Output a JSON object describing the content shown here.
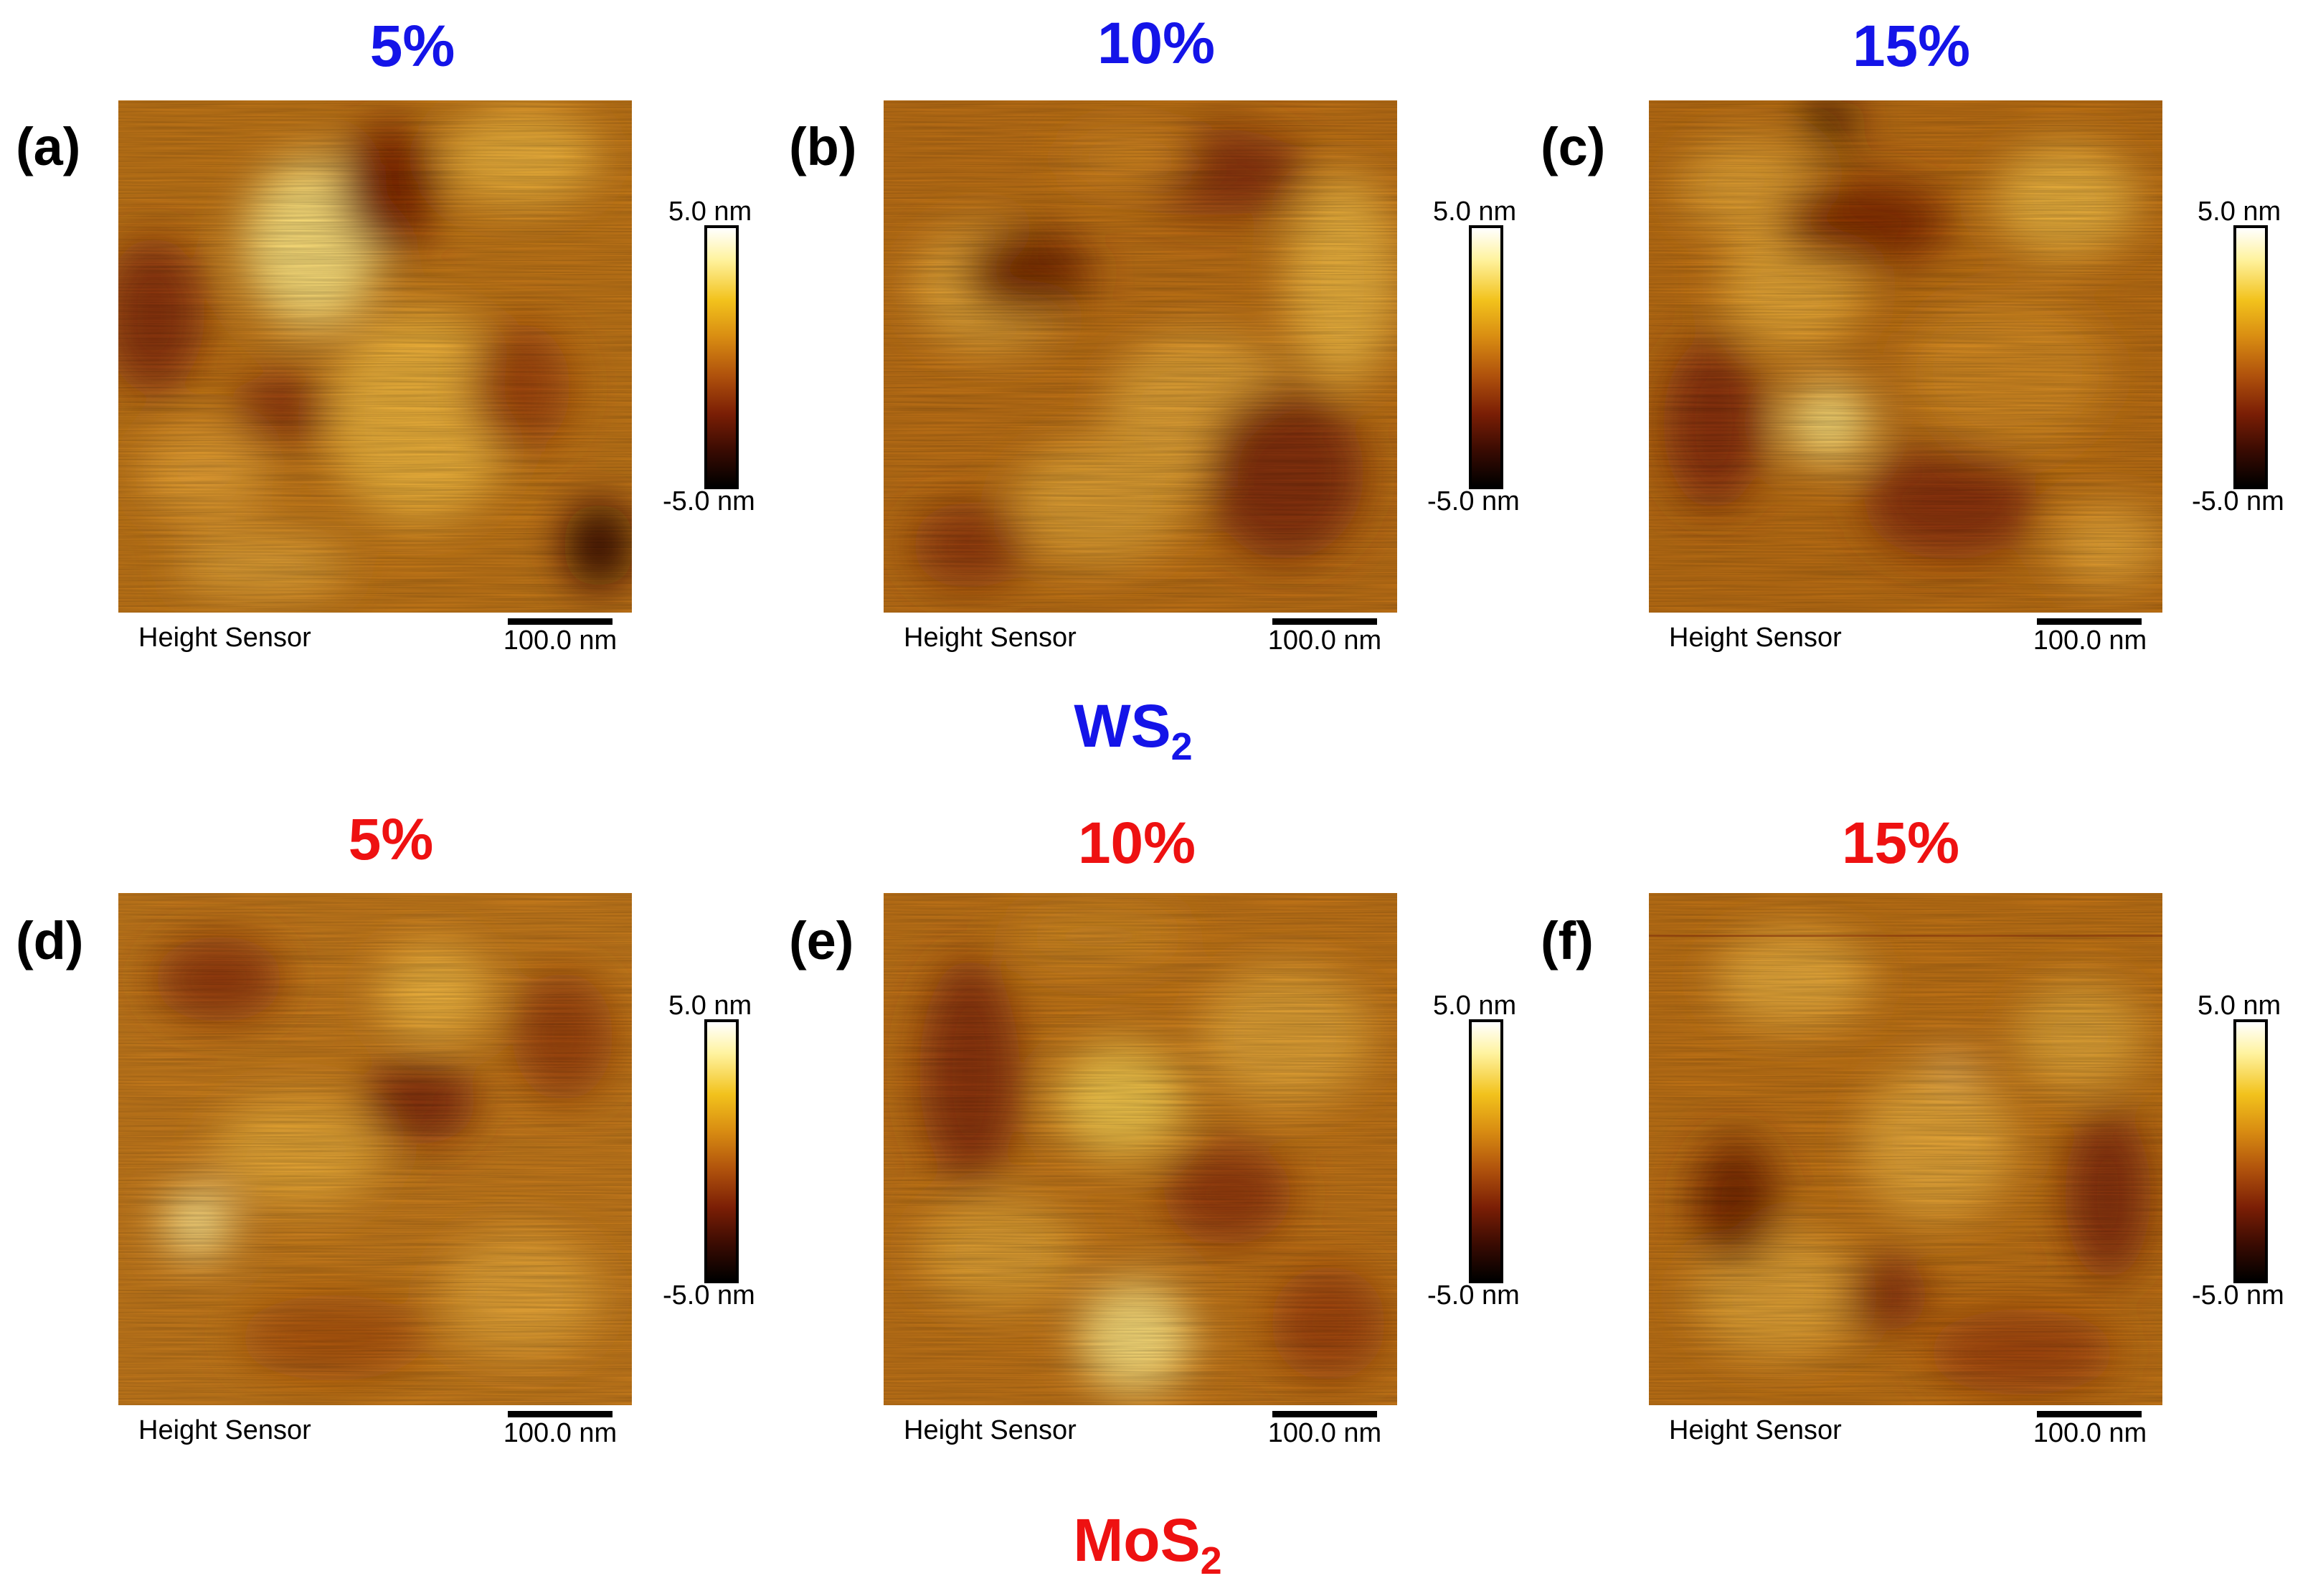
{
  "colors": {
    "ws2": "#1414e8",
    "mos2": "#ee1111"
  },
  "materials": {
    "ws2": {
      "main": "WS",
      "sub": "2"
    },
    "mos2": {
      "main": "MoS",
      "sub": "2"
    }
  },
  "panels": [
    {
      "label": "(a)",
      "percent": "5%",
      "material": "WS2",
      "colorbar_max": "5.0 nm",
      "colorbar_min": "-5.0 nm",
      "channel": "Height Sensor",
      "scale": "100.0 nm"
    },
    {
      "label": "(b)",
      "percent": "10%",
      "material": "WS2",
      "colorbar_max": "5.0 nm",
      "colorbar_min": "-5.0 nm",
      "channel": "Height Sensor",
      "scale": "100.0 nm"
    },
    {
      "label": "(c)",
      "percent": "15%",
      "material": "WS2",
      "colorbar_max": "5.0 nm",
      "colorbar_min": "-5.0 nm",
      "channel": "Height Sensor",
      "scale": "100.0 nm"
    },
    {
      "label": "(d)",
      "percent": "5%",
      "material": "MoS2",
      "colorbar_max": "5.0 nm",
      "colorbar_min": "-5.0 nm",
      "channel": "Height Sensor",
      "scale": "100.0 nm"
    },
    {
      "label": "(e)",
      "percent": "10%",
      "material": "MoS2",
      "colorbar_max": "5.0 nm",
      "colorbar_min": "-5.0 nm",
      "channel": "Height Sensor",
      "scale": "100.0 nm"
    },
    {
      "label": "(f)",
      "percent": "15%",
      "material": "MoS2",
      "colorbar_max": "5.0 nm",
      "colorbar_min": "-5.0 nm",
      "channel": "Height Sensor",
      "scale": "100.0 nm"
    }
  ]
}
